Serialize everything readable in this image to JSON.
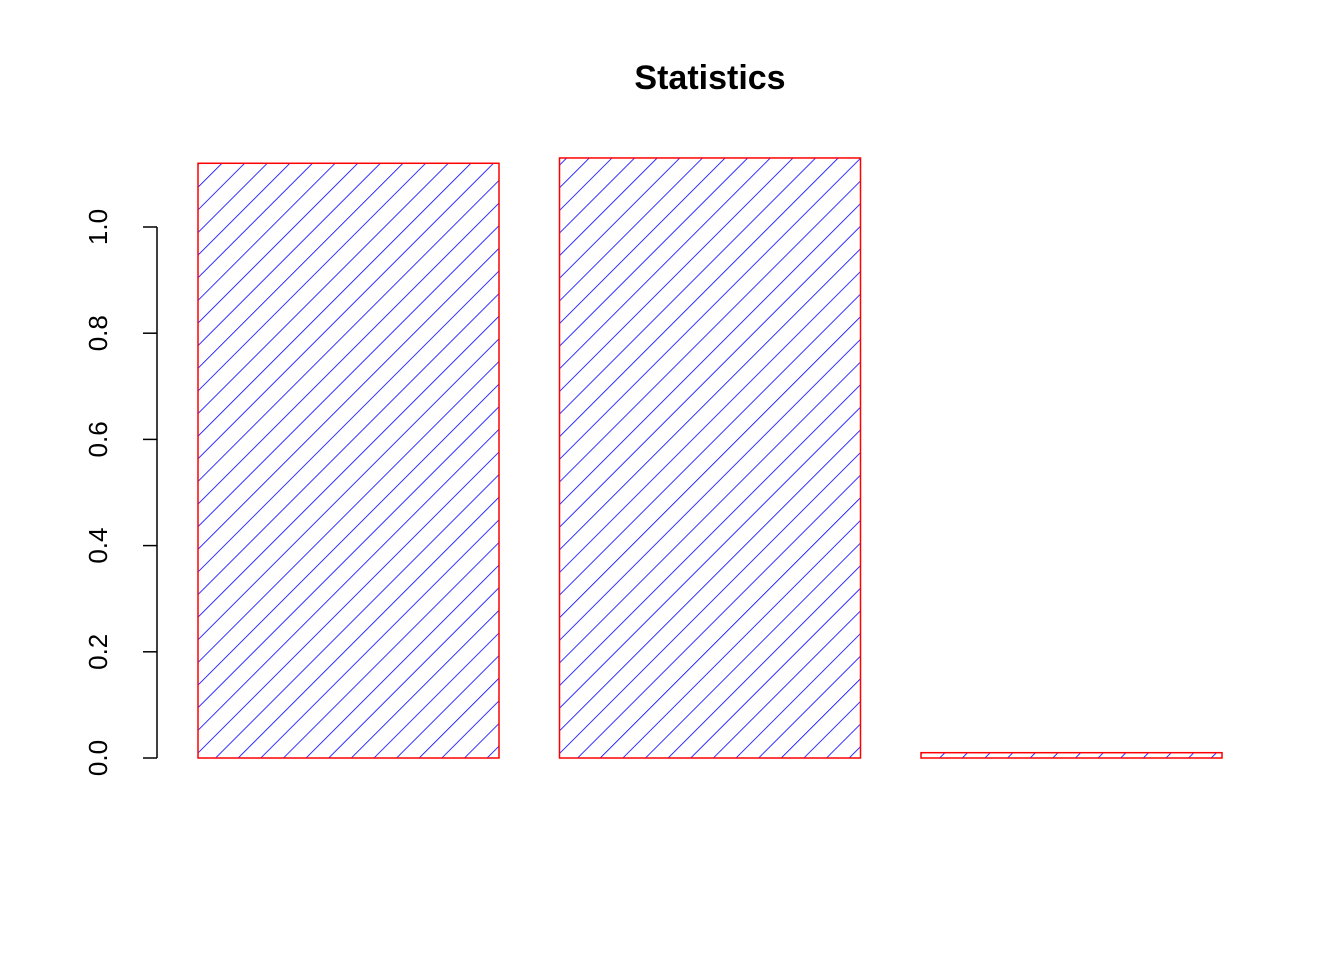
{
  "chart_data": {
    "type": "bar",
    "title": "Statistics",
    "categories": [
      null,
      null,
      null
    ],
    "values": [
      1.12,
      1.13,
      0.01
    ],
    "color": "#0000ff",
    "border_color": "#ff0000",
    "fill_style": "hatch",
    "ylim": [
      0,
      1.13
    ],
    "yticks": [
      {
        "value": 0,
        "label": "0.0"
      },
      {
        "value": 0.2,
        "label": "0.2"
      },
      {
        "value": 0.4,
        "label": "0.4"
      },
      {
        "value": 0.6,
        "label": "0.6"
      },
      {
        "value": 0.8,
        "label": "0.8"
      },
      {
        "value": 1,
        "label": "1.0"
      }
    ],
    "grid": false
  }
}
